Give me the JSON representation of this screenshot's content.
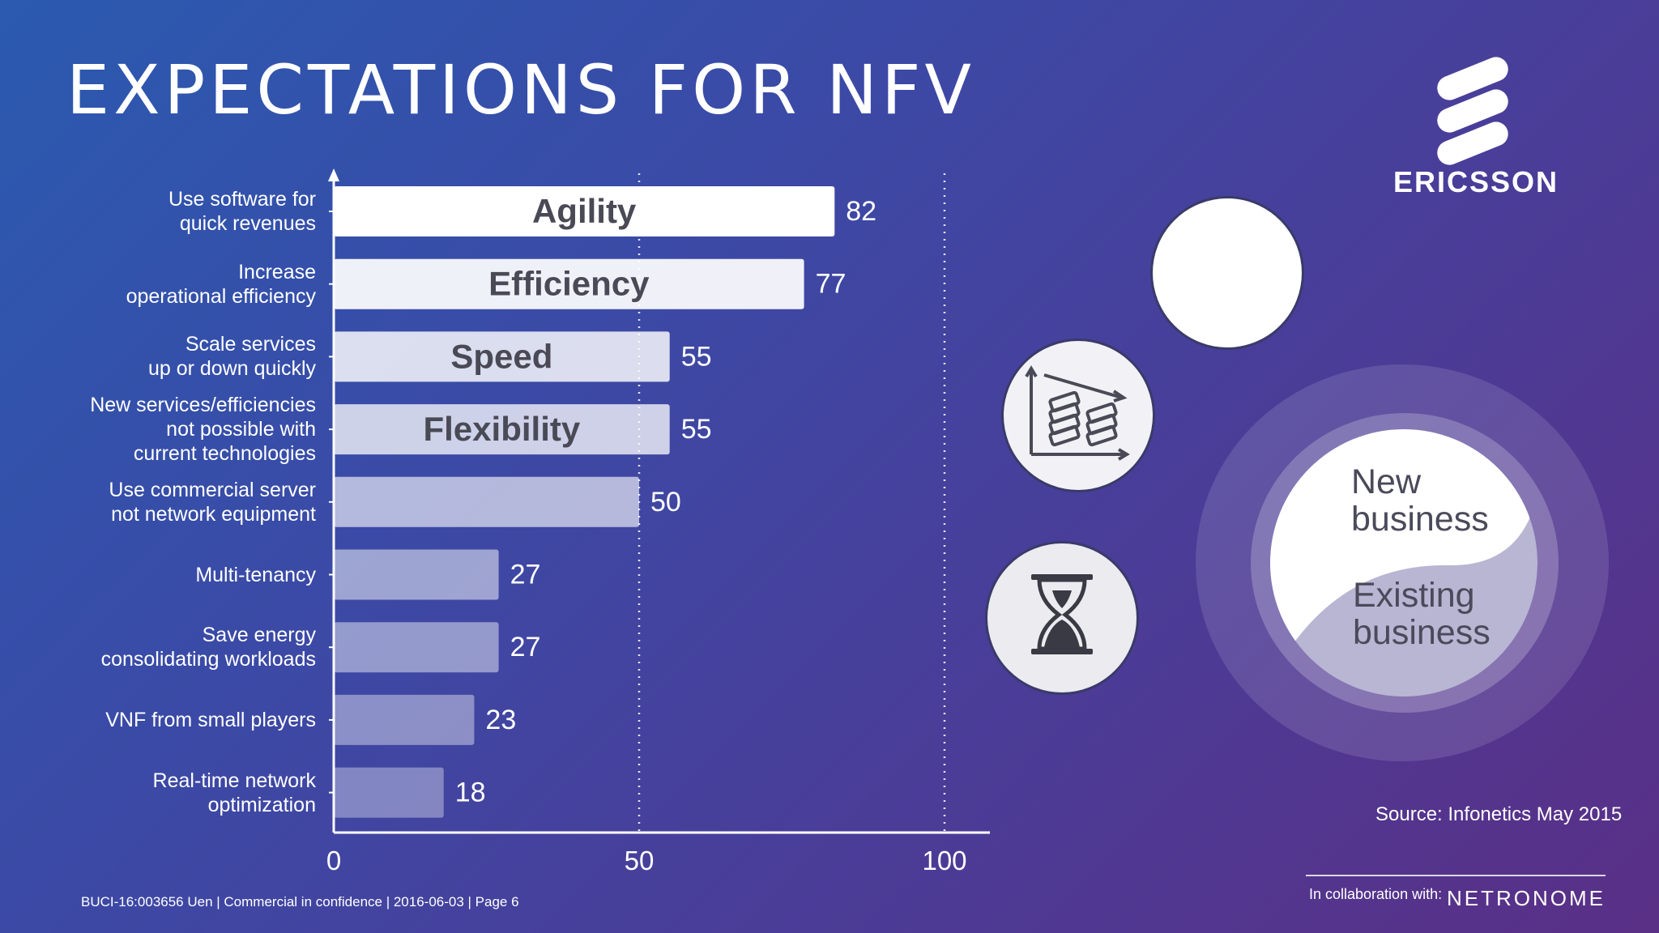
{
  "slide": {
    "title": "EXPECTATIONS FOR NFV",
    "brand": "ERICSSON",
    "source": "Source: Infonetics May 2015",
    "collab_label": "In collaboration with:",
    "partner": "NETRONOME",
    "footer": "BUCI-16:003656 Uen  |  Commercial in confidence  |  2016-06-03  |  Page 6"
  },
  "business": {
    "new": "New\nbusiness",
    "existing": "Existing\nbusiness"
  },
  "icons": [
    "chart-trend-money-icon",
    "hourglass-icon",
    "ericsson-logo-icon"
  ],
  "colors": {
    "bar_strong": "#ffffff",
    "bar_label_text": "#4a4a56"
  },
  "chart_data": {
    "type": "bar",
    "orientation": "horizontal",
    "categories": [
      "Use software for\nquick revenues",
      "Increase\noperational efficiency",
      "Scale services\nup or down quickly",
      "New services/efficiencies\nnot possible with\ncurrent technologies",
      "Use commercial server\nnot network equipment",
      "Multi-tenancy",
      "Save energy\nconsolidating workloads",
      "VNF from small players",
      "Real-time network\noptimization"
    ],
    "values": [
      82,
      77,
      55,
      55,
      50,
      27,
      27,
      23,
      18
    ],
    "bar_labels": [
      "Agility",
      "Efficiency",
      "Speed",
      "Flexibility",
      "",
      "",
      "",
      "",
      ""
    ],
    "xlim": [
      0,
      100
    ],
    "xticks": [
      0,
      50,
      100
    ],
    "grid": "dotted vertical at 50 and 100",
    "bar_opacity": [
      1.0,
      0.92,
      0.82,
      0.75,
      0.62,
      0.5,
      0.45,
      0.4,
      0.35
    ]
  }
}
